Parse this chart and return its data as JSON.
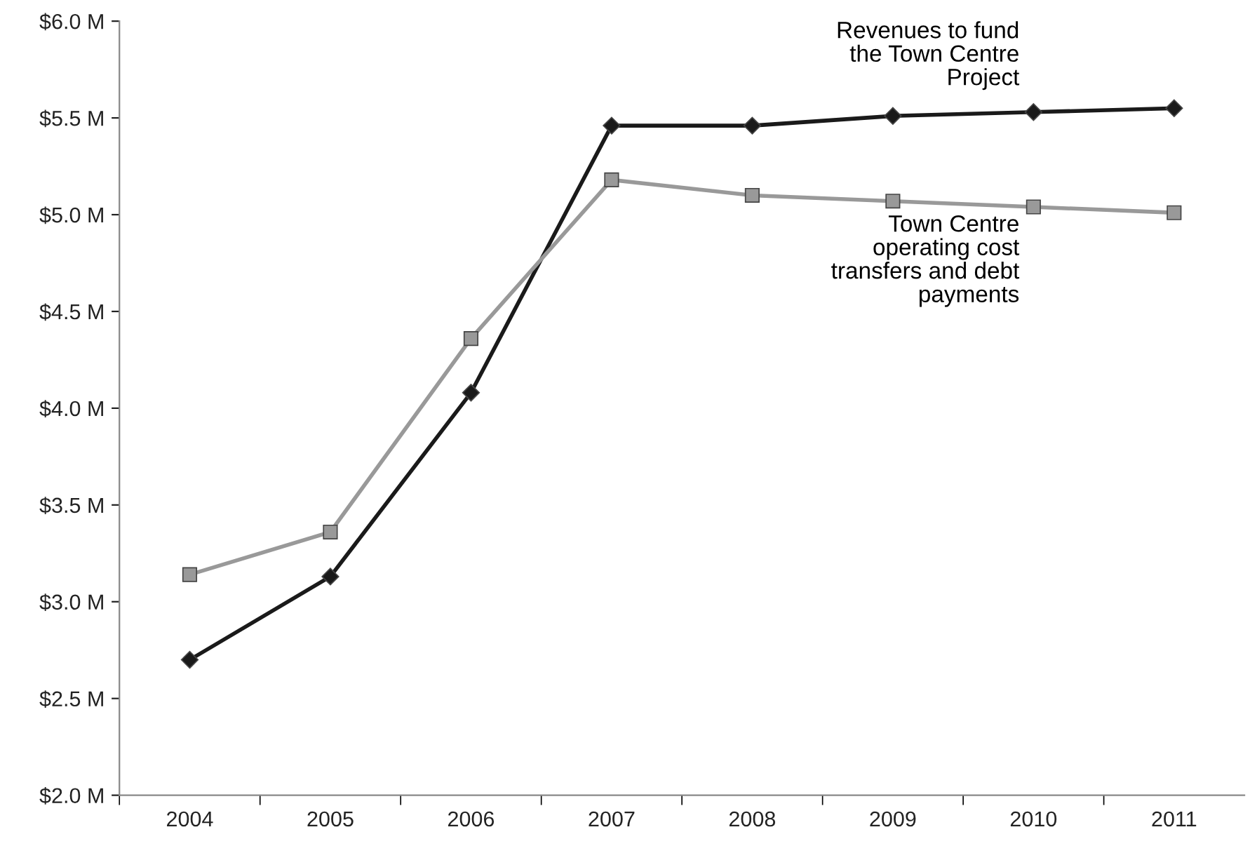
{
  "chart_data": {
    "type": "line",
    "categories": [
      "2004",
      "2005",
      "2006",
      "2007",
      "2008",
      "2009",
      "2010",
      "2011"
    ],
    "series": [
      {
        "color": "#1a1a1a",
        "marker": "diamond",
        "values": [
          2.7,
          3.13,
          4.08,
          5.46,
          5.46,
          5.51,
          5.53,
          5.55
        ]
      },
      {
        "color": "#999999",
        "marker": "square",
        "values": [
          3.14,
          3.36,
          4.36,
          5.18,
          5.1,
          5.07,
          5.04,
          5.01
        ]
      }
    ],
    "ylim": [
      2.0,
      6.0
    ],
    "yticks": [
      {
        "value": 2.0,
        "label": "$2.0 M"
      },
      {
        "value": 2.5,
        "label": "$2.5 M"
      },
      {
        "value": 3.0,
        "label": "$3.0 M"
      },
      {
        "value": 3.5,
        "label": "$3.5 M"
      },
      {
        "value": 4.0,
        "label": "$4.0 M"
      },
      {
        "value": 4.5,
        "label": "$4.5 M"
      },
      {
        "value": 5.0,
        "label": "$5.0 M"
      },
      {
        "value": 5.5,
        "label": "$5.5 M"
      },
      {
        "value": 6.0,
        "label": "$6.0 M"
      }
    ],
    "annotations": [
      "Revenues to fund\nthe Town Centre\nProject",
      "Town Centre\noperating cost\ntransfers and debt\npayments"
    ],
    "grid": false,
    "legend": false,
    "line_style": "solid"
  }
}
